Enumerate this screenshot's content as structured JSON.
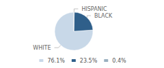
{
  "chart_data": {
    "type": "pie",
    "categories": [
      "WHITE",
      "BLACK",
      "HISPANIC"
    ],
    "values": [
      76.1,
      23.5,
      0.4
    ],
    "value_labels": [
      "76.1%",
      "23.5%",
      "0.4%"
    ],
    "colors": [
      "#c8d8e8",
      "#2f5f8a",
      "#9ab0c0"
    ],
    "legend": "bottom"
  }
}
